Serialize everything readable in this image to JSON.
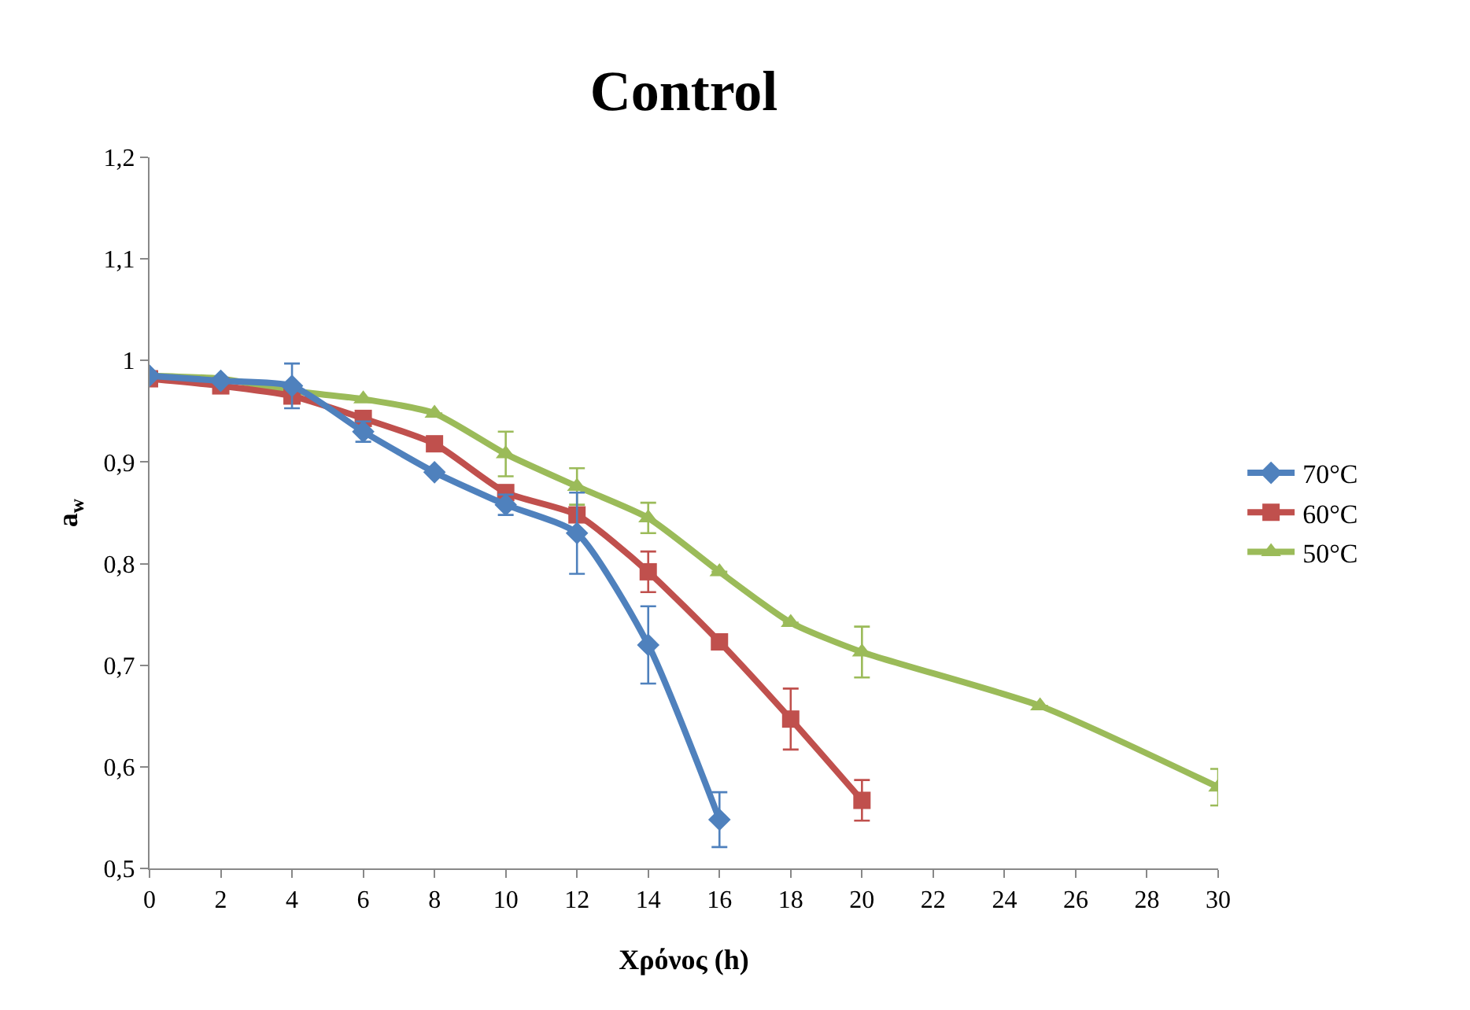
{
  "chart_data": {
    "type": "line",
    "title": "Control",
    "xlabel": "Χρόνος (h)",
    "ylabel": "a$_{w}$",
    "xlim": [
      0,
      30
    ],
    "xticks": [
      0,
      2,
      4,
      6,
      8,
      10,
      12,
      14,
      16,
      18,
      20,
      22,
      24,
      26,
      28,
      30
    ],
    "ylim": [
      0.5,
      1.2
    ],
    "yticks": [
      {
        "value": 0.5,
        "label": "0,5"
      },
      {
        "value": 0.6,
        "label": "0,6"
      },
      {
        "value": 0.7,
        "label": "0,7"
      },
      {
        "value": 0.8,
        "label": "0,8"
      },
      {
        "value": 0.9,
        "label": "0,9"
      },
      {
        "value": 1,
        "label": "1"
      },
      {
        "value": 1.1,
        "label": "1,1"
      },
      {
        "value": 1.2,
        "label": "1,2"
      }
    ],
    "grid": false,
    "legend": "right",
    "line_style": "solid",
    "series": [
      {
        "name": "70°C",
        "color": "#4f81bd",
        "marker": "diamond",
        "x": [
          0,
          2,
          4,
          6,
          8,
          10,
          12,
          14,
          16
        ],
        "values": [
          0.985,
          0.98,
          0.975,
          0.93,
          0.89,
          0.858,
          0.83,
          0.72,
          0.548
        ],
        "errors": [
          null,
          null,
          0.022,
          0.01,
          null,
          0.01,
          0.04,
          0.038,
          0.027
        ]
      },
      {
        "name": "60°C",
        "color": "#c0504d",
        "marker": "square",
        "x": [
          0,
          2,
          4,
          6,
          8,
          10,
          12,
          14,
          16,
          18,
          20
        ],
        "values": [
          0.982,
          0.975,
          0.965,
          0.943,
          0.918,
          0.87,
          0.848,
          0.792,
          0.723,
          0.647,
          0.567
        ],
        "errors": [
          null,
          null,
          null,
          null,
          null,
          null,
          null,
          0.02,
          null,
          0.03,
          0.02
        ]
      },
      {
        "name": "50°C",
        "color": "#9bbb59",
        "marker": "triangle",
        "x": [
          0,
          2,
          4,
          6,
          8,
          10,
          12,
          14,
          16,
          18,
          20,
          25,
          30
        ],
        "values": [
          0.985,
          0.982,
          0.97,
          0.962,
          0.948,
          0.908,
          0.876,
          0.845,
          0.792,
          0.742,
          0.713,
          0.66,
          0.58
        ],
        "errors": [
          null,
          null,
          null,
          null,
          null,
          0.022,
          0.018,
          0.015,
          null,
          null,
          0.025,
          null,
          0.018
        ]
      }
    ]
  }
}
